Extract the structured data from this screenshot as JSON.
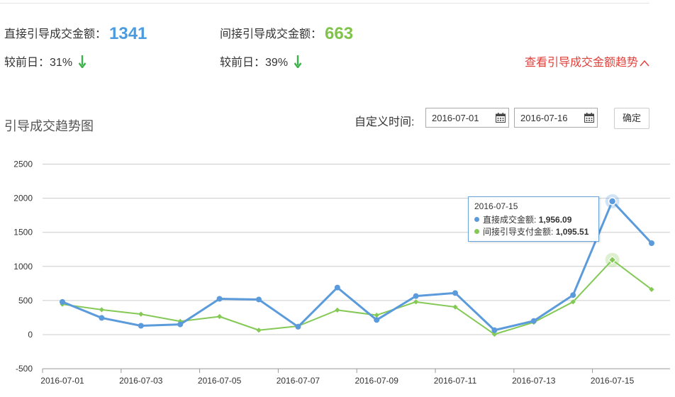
{
  "summary": {
    "direct": {
      "label": "直接引导成交金额：",
      "value": "1341",
      "compare_label": "较前日：",
      "compare_value": "31%"
    },
    "indirect": {
      "label": "间接引导成交金额：",
      "value": "663",
      "compare_label": "较前日：",
      "compare_value": "39%"
    },
    "trend_link": "查看引导成交金额趋势"
  },
  "filter": {
    "title": "引导成交趋势图",
    "range_label": "自定义时间:",
    "start_date": "2016-07-01",
    "end_date": "2016-07-16",
    "confirm_label": "确定"
  },
  "tooltip": {
    "date": "2016-07-15",
    "rows": [
      {
        "label": "直接成交金额:",
        "value": "1,956.09",
        "color": "#5b9bdb"
      },
      {
        "label": "间接引导支付金额:",
        "value": "1,095.51",
        "color": "#84c956"
      }
    ]
  },
  "chart_data": {
    "type": "line",
    "title": "引导成交趋势图",
    "ylim": [
      -500,
      2500
    ],
    "yticks": [
      -500,
      0,
      500,
      1000,
      1500,
      2000,
      2500
    ],
    "xtick_labels": [
      "2016-07-01",
      "2016-07-03",
      "2016-07-05",
      "2016-07-07",
      "2016-07-09",
      "2016-07-11",
      "2016-07-13",
      "2016-07-15"
    ],
    "categories": [
      "2016-07-01",
      "2016-07-02",
      "2016-07-03",
      "2016-07-04",
      "2016-07-05",
      "2016-07-06",
      "2016-07-07",
      "2016-07-08",
      "2016-07-09",
      "2016-07-10",
      "2016-07-11",
      "2016-07-12",
      "2016-07-13",
      "2016-07-14",
      "2016-07-15",
      "2016-07-16"
    ],
    "series": [
      {
        "name": "直接成交金额",
        "color": "#5b9bdb",
        "marker": "circle",
        "values": [
          480,
          245,
          130,
          150,
          525,
          515,
          115,
          690,
          215,
          565,
          610,
          65,
          200,
          580,
          1956.09,
          1341
        ]
      },
      {
        "name": "间接引导支付金额",
        "color": "#84c956",
        "marker": "diamond",
        "values": [
          445,
          365,
          300,
          195,
          265,
          65,
          125,
          360,
          285,
          480,
          405,
          5,
          180,
          480,
          1095.51,
          663
        ]
      }
    ],
    "highlight_index": 14,
    "grid": true,
    "legend": "none"
  }
}
